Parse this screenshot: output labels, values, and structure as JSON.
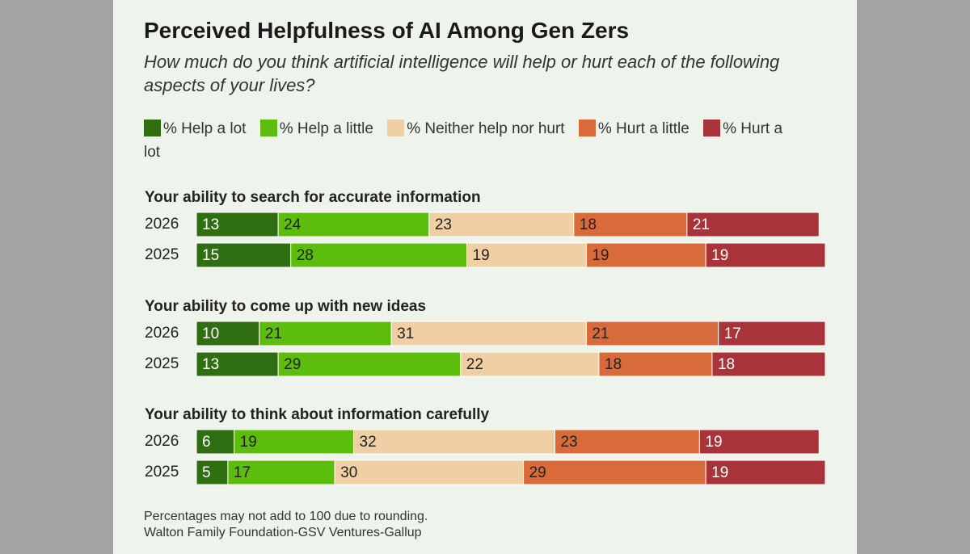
{
  "chart_data": {
    "type": "stacked_bar",
    "title": "Perceived Helpfulness of AI Among Gen Zers",
    "subtitle": "How much do you think artificial intelligence will help or hurt each of the following aspects of your lives?",
    "series": [
      {
        "name": "% Help a lot",
        "color": "#2f6f12"
      },
      {
        "name": "% Help a little",
        "color": "#5cbd0d"
      },
      {
        "name": "% Neither help nor hurt",
        "color": "#efcfa3"
      },
      {
        "name": "% Hurt a little",
        "color": "#d96b3a"
      },
      {
        "name": "% Hurt a lot",
        "color": "#a83338"
      }
    ],
    "groups": [
      {
        "label": "Your ability to search for accurate information",
        "categories": [
          "2026",
          "2025"
        ],
        "values": [
          [
            13,
            24,
            23,
            18,
            21
          ],
          [
            15,
            28,
            19,
            19,
            19
          ]
        ]
      },
      {
        "label": "Your ability to come up with new ideas",
        "categories": [
          "2026",
          "2025"
        ],
        "values": [
          [
            10,
            21,
            31,
            21,
            17
          ],
          [
            13,
            29,
            22,
            18,
            18
          ]
        ]
      },
      {
        "label": "Your ability to think about information carefully",
        "categories": [
          "2026",
          "2025"
        ],
        "values": [
          [
            6,
            19,
            32,
            23,
            19
          ],
          [
            5,
            17,
            30,
            29,
            19
          ]
        ]
      }
    ],
    "xlim": [
      0,
      100
    ],
    "note": "Percentages may not add to 100 due to rounding.",
    "source": "Walton Family Foundation-GSV Ventures-Gallup"
  }
}
